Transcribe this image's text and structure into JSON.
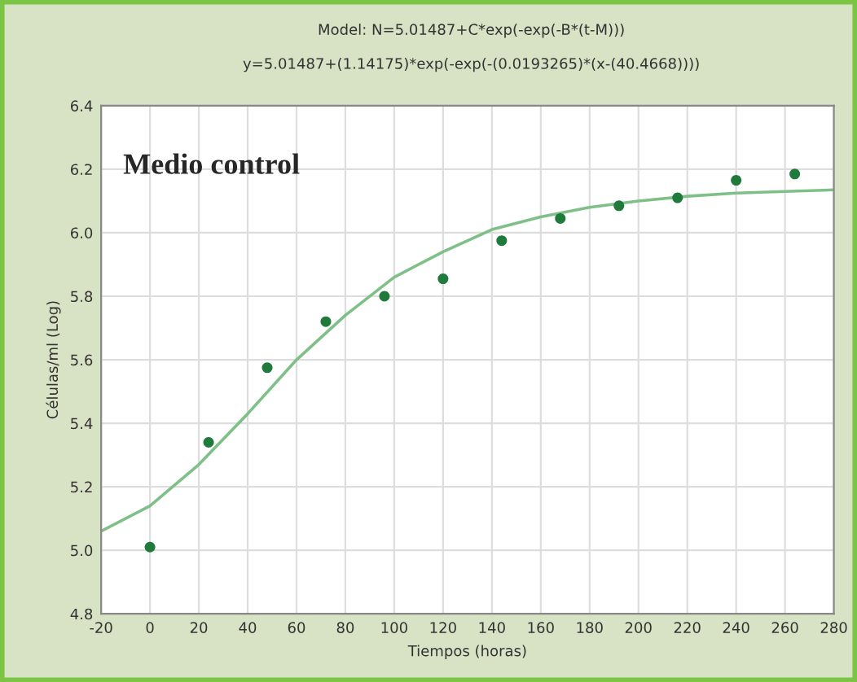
{
  "chart_data": {
    "type": "scatter",
    "title": "Model: N=5.01487+C*exp(-exp(-B*(t-M)))",
    "subtitle": "y=5.01487+(1.14175)*exp(-exp(-(0.0193265)*(x-(40.4668))))",
    "xlabel": "Tiempos (horas)",
    "ylabel": "Células/ml (Log)",
    "annotations": [
      "Medio control"
    ],
    "series": [
      {
        "color": "#1f7a3c",
        "marker": "circle",
        "x": [
          0,
          24,
          48,
          72,
          96,
          120,
          144,
          168,
          192,
          216,
          240,
          264
        ],
        "values": [
          5.01,
          5.34,
          5.575,
          5.72,
          5.8,
          5.855,
          5.975,
          6.045,
          6.085,
          6.11,
          6.165,
          6.185
        ]
      },
      {
        "type": "line",
        "color": "#7fbf88",
        "marker": "none",
        "line_style": "solid",
        "x": [
          -20,
          0,
          20,
          40,
          60,
          80,
          100,
          120,
          140,
          160,
          180,
          200,
          220,
          240,
          260,
          280
        ],
        "values": [
          5.06,
          5.14,
          5.27,
          5.43,
          5.6,
          5.74,
          5.86,
          5.94,
          6.01,
          6.05,
          6.08,
          6.1,
          6.115,
          6.125,
          6.13,
          6.135
        ]
      }
    ],
    "xlim": [
      -20,
      280
    ],
    "xticks": [
      -20,
      0,
      20,
      40,
      60,
      80,
      100,
      120,
      140,
      160,
      180,
      200,
      220,
      240,
      260,
      280
    ],
    "ylim": [
      4.8,
      6.4
    ],
    "yticks": [
      {
        "value": 4.8,
        "label": "4.8"
      },
      {
        "value": 5.0,
        "label": "5.0"
      },
      {
        "value": 5.2,
        "label": "5.2"
      },
      {
        "value": 5.4,
        "label": "5.4"
      },
      {
        "value": 5.6,
        "label": "5.6"
      },
      {
        "value": 5.8,
        "label": "5.8"
      },
      {
        "value": 6.0,
        "label": "6.0"
      },
      {
        "value": 6.2,
        "label": "6.2"
      },
      {
        "value": 6.4,
        "label": "6.4"
      }
    ],
    "grid": true,
    "legend": false
  }
}
